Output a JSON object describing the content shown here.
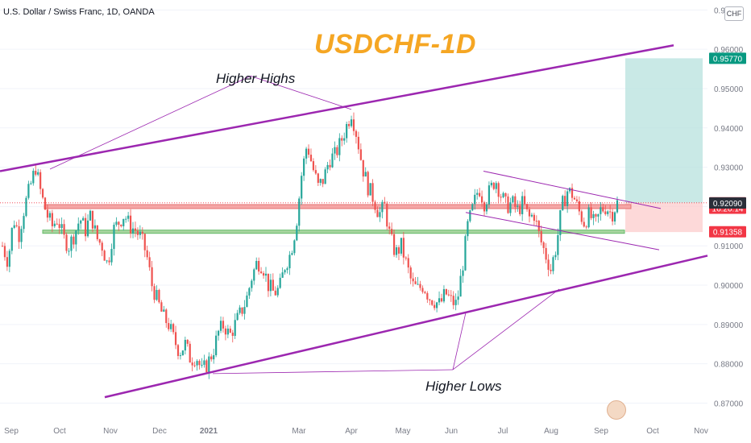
{
  "header": {
    "symbol_text": "U.S. Dollar / Swiss Franc, 1D, OANDA",
    "currency": "CHF"
  },
  "chart_data": {
    "type": "candlestick",
    "title": "USDCHF-1D",
    "symbol": "U.S. Dollar / Swiss Franc",
    "timeframe": "1D",
    "source": "OANDA",
    "y_ticks": [
      "0.97000",
      "0.96000",
      "0.95000",
      "0.94000",
      "0.93000",
      "0.92000",
      "0.91000",
      "0.90000",
      "0.89000",
      "0.88000",
      "0.87000"
    ],
    "x_ticks": [
      "Sep",
      "Oct",
      "Nov",
      "Dec",
      "2021",
      "Mar",
      "Apr",
      "May",
      "Jun",
      "Jul",
      "Aug",
      "Sep",
      "Oct",
      "Nov"
    ],
    "ylim": [
      0.866,
      0.9715
    ],
    "price_tags": [
      {
        "value": 0.9577,
        "label": "0.95770",
        "color": "#089981"
      },
      {
        "value": 0.92094,
        "label": "0.92094",
        "color": "#f23645"
      },
      {
        "value": 0.91956,
        "label": "16:20:14",
        "color": "#f23645"
      },
      {
        "value": 0.9209,
        "label": "0.92090",
        "color": "#2a2e39"
      },
      {
        "value": 0.91358,
        "label": "0.91358",
        "color": "#f23645"
      }
    ],
    "price_path": [
      [
        0.91,
        0.906,
        0.917,
        0.913,
        0.92,
        0.925,
        0.93
      ],
      [
        0.923,
        0.918,
        0.915,
        0.917,
        0.912,
        0.91,
        0.913,
        0.917,
        0.914,
        0.918,
        0.912,
        0.91,
        0.905,
        0.914,
        0.916
      ],
      [
        0.918,
        0.915,
        0.914,
        0.912,
        0.908,
        0.9,
        0.896,
        0.892,
        0.89,
        0.886,
        0.883,
        0.885,
        0.881,
        0.882,
        0.878
      ],
      [
        0.88,
        0.883,
        0.888,
        0.89,
        0.887,
        0.89,
        0.893,
        0.896,
        0.902,
        0.906,
        0.905,
        0.9,
        0.898,
        0.899,
        0.905
      ],
      [
        0.908,
        0.915,
        0.928,
        0.936,
        0.93,
        0.925,
        0.927,
        0.932,
        0.933,
        0.936,
        0.94,
        0.944
      ],
      [
        0.938,
        0.93,
        0.925,
        0.922,
        0.918,
        0.92,
        0.912,
        0.908,
        0.91,
        0.905,
        0.9,
        0.899,
        0.9,
        0.897,
        0.896,
        0.895,
        0.898,
        0.896,
        0.895
      ],
      [
        0.904,
        0.915,
        0.92,
        0.925,
        0.921,
        0.924,
        0.927,
        0.923,
        0.92,
        0.921,
        0.919,
        0.921,
        0.917,
        0.918,
        0.912,
        0.908,
        0.904,
        0.91,
        0.92,
        0.924,
        0.923,
        0.919,
        0.916,
        0.918,
        0.915,
        0.919,
        0.92,
        0.918,
        0.9209
      ]
    ],
    "candle_count": 260,
    "series": []
  },
  "annotations": {
    "higher_highs": "Higher Highs",
    "higher_lows": "Higher Lows"
  },
  "colors": {
    "up": "#26a69a",
    "down": "#ef5350",
    "channel": "#9c27b0",
    "title": "#f5a623",
    "resistance": "#f5a6a6",
    "support": "#a8d5a0",
    "target_zone": "#b2dfdb",
    "stop_zone": "#fcc9c9"
  }
}
